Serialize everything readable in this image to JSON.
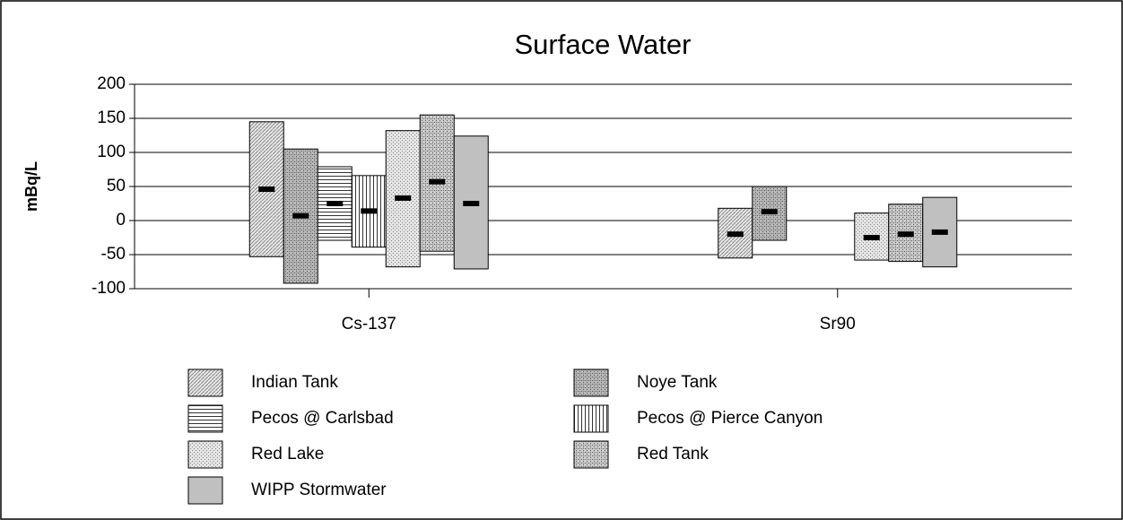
{
  "chart_data": {
    "type": "floating_bar",
    "title": "Surface Water",
    "y_label": "mBq/L",
    "categories": [
      "Cs-137",
      "Sr90"
    ],
    "ylim": [
      -100,
      200
    ],
    "yticks": [
      -100,
      -50,
      0,
      50,
      100,
      150,
      200
    ],
    "grid": true,
    "series": [
      {
        "name": "Indian Tank",
        "color": "#e8e8e8",
        "pattern": "diagonal",
        "high": [
          145,
          18
        ],
        "low": [
          -53,
          -55
        ],
        "mean": [
          46,
          -20
        ]
      },
      {
        "name": "Noye Tank",
        "color": "#b8b8b8",
        "pattern": "dense-dots",
        "high": [
          105,
          50
        ],
        "low": [
          -92,
          -29
        ],
        "mean": [
          7,
          13
        ]
      },
      {
        "name": "Pecos @ Carlsbad",
        "color": "#ffffff",
        "pattern": "horizontal",
        "high": [
          79,
          null
        ],
        "low": [
          -29,
          null
        ],
        "mean": [
          25,
          null
        ]
      },
      {
        "name": "Pecos @ Pierce Canyon",
        "color": "#ffffff",
        "pattern": "vertical",
        "high": [
          66,
          null
        ],
        "low": [
          -39,
          null
        ],
        "mean": [
          14,
          null
        ]
      },
      {
        "name": "Red Lake",
        "color": "#e4e4e4",
        "pattern": "fine-dots",
        "high": [
          132,
          11
        ],
        "low": [
          -68,
          -58
        ],
        "mean": [
          33,
          -25
        ]
      },
      {
        "name": "Red Tank",
        "color": "#cccccc",
        "pattern": "dense-dots",
        "high": [
          155,
          24
        ],
        "low": [
          -45,
          -60
        ],
        "mean": [
          57,
          -20
        ]
      },
      {
        "name": "WIPP Stormwater",
        "color": "#c0c0c0",
        "pattern": "solid",
        "high": [
          124,
          34
        ],
        "low": [
          -71,
          -68
        ],
        "mean": [
          25,
          -17
        ]
      }
    ]
  }
}
